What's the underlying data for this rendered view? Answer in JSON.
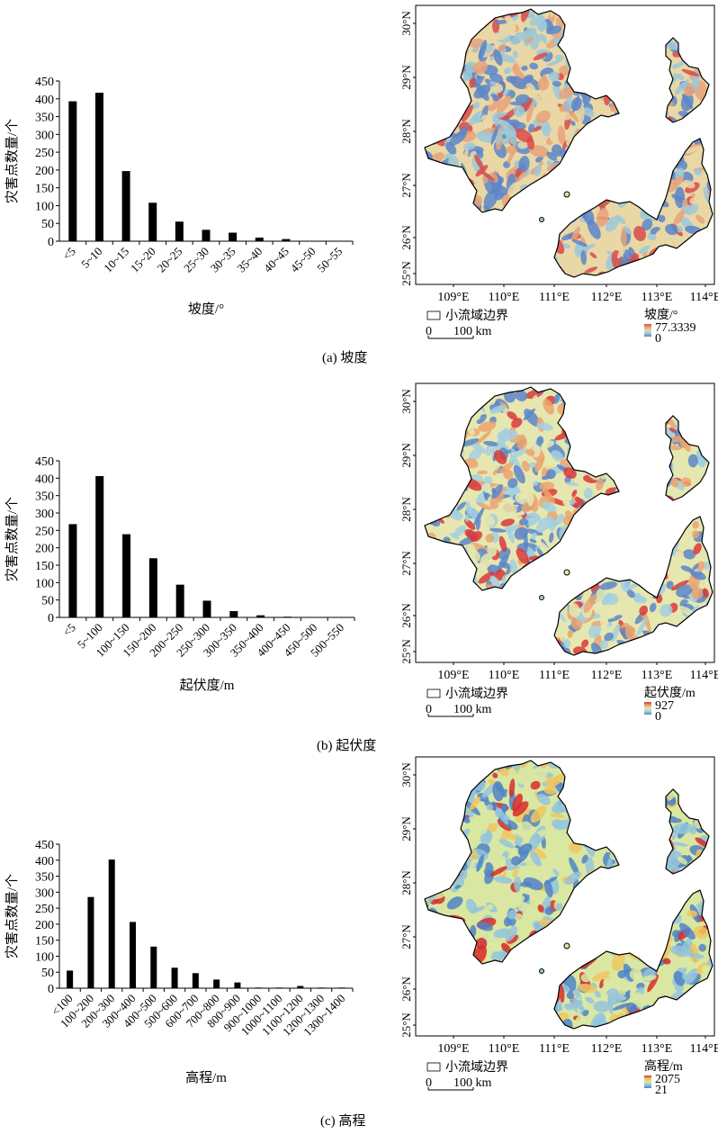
{
  "panels": [
    {
      "caption": "(a) 坡度",
      "map": {
        "legend_boundary_label": "小流域边界",
        "legend_title": "坡度/°",
        "legend_max": "77.3339",
        "legend_min": "0",
        "scale_zero": "0",
        "scale_label": "100 km",
        "lat_labels": [
          "30°N",
          "29°N",
          "28°N",
          "27°N",
          "26°N",
          "25°N"
        ],
        "lon_labels": [
          "109°E",
          "110°E",
          "111°E",
          "112°E",
          "113°E",
          "114°E"
        ],
        "palette": [
          "#5b86c9",
          "#9cc8d8",
          "#e9d8a6",
          "#e8a27a",
          "#d84b4b"
        ]
      }
    },
    {
      "caption": "(b) 起伏度",
      "map": {
        "legend_boundary_label": "小流域边界",
        "legend_title": "起伏度/m",
        "legend_max": "927",
        "legend_min": "0",
        "scale_zero": "0",
        "scale_label": "100 km",
        "lat_labels": [
          "30°N",
          "29°N",
          "28°N",
          "27°N",
          "26°N",
          "25°N"
        ],
        "lon_labels": [
          "109°E",
          "110°E",
          "111°E",
          "112°E",
          "113°E",
          "114°E"
        ],
        "palette": [
          "#5b86c9",
          "#a3cfe0",
          "#e6e7b0",
          "#eba36e",
          "#d83a3a"
        ]
      }
    },
    {
      "caption": "(c) 高程",
      "map": {
        "legend_boundary_label": "小流域边界",
        "legend_title": "高程/m",
        "legend_max": "2075",
        "legend_min": "21",
        "scale_zero": "0",
        "scale_label": "100 km",
        "lat_labels": [
          "30°N",
          "29°N",
          "28°N",
          "27°N",
          "26°N",
          "25°N"
        ],
        "lon_labels": [
          "109°E",
          "110°E",
          "111°E",
          "112°E",
          "113°E",
          "114°E"
        ],
        "palette": [
          "#4f83c7",
          "#93c4dc",
          "#d9e7a2",
          "#f0c55e",
          "#d62b2b"
        ]
      }
    }
  ],
  "chart_data": [
    {
      "type": "bar",
      "categories": [
        "<5",
        "5~10",
        "10~15",
        "15~20",
        "20~25",
        "25~30",
        "30~35",
        "35~40",
        "40~45",
        "45~50",
        "50~55"
      ],
      "values": [
        393,
        417,
        197,
        108,
        55,
        32,
        24,
        10,
        6,
        1,
        1
      ],
      "xlabel": "坡度/°",
      "ylabel": "灾害点数量/个",
      "ylim": [
        0,
        450
      ],
      "yticks": [
        0,
        50,
        100,
        150,
        200,
        250,
        300,
        350,
        400,
        450
      ],
      "bar_color": "#000000"
    },
    {
      "type": "bar",
      "categories": [
        "<5",
        "5~100",
        "100~150",
        "150~200",
        "200~250",
        "250~300",
        "300~350",
        "350~400",
        "400~450",
        "450~500",
        "500~550"
      ],
      "values": [
        268,
        406,
        239,
        170,
        94,
        48,
        18,
        6,
        2,
        1,
        1
      ],
      "xlabel": "起伏度/m",
      "ylabel": "灾害点数量/个",
      "ylim": [
        0,
        450
      ],
      "yticks": [
        0,
        50,
        100,
        150,
        200,
        250,
        300,
        350,
        400,
        450
      ],
      "bar_color": "#000000"
    },
    {
      "type": "bar",
      "categories": [
        "<100",
        "100~200",
        "200~300",
        "300~400",
        "400~500",
        "500~600",
        "600~700",
        "700~800",
        "800~900",
        "900~1000",
        "1000~1100",
        "1100~1200",
        "1200~1300",
        "1300~1400"
      ],
      "values": [
        55,
        285,
        402,
        207,
        130,
        64,
        47,
        27,
        18,
        2,
        2,
        7,
        2,
        2
      ],
      "xlabel": "高程/m",
      "ylabel": "灾害点数量/个",
      "ylim": [
        0,
        450
      ],
      "yticks": [
        0,
        50,
        100,
        150,
        200,
        250,
        300,
        350,
        400,
        450
      ],
      "bar_color": "#000000"
    }
  ]
}
